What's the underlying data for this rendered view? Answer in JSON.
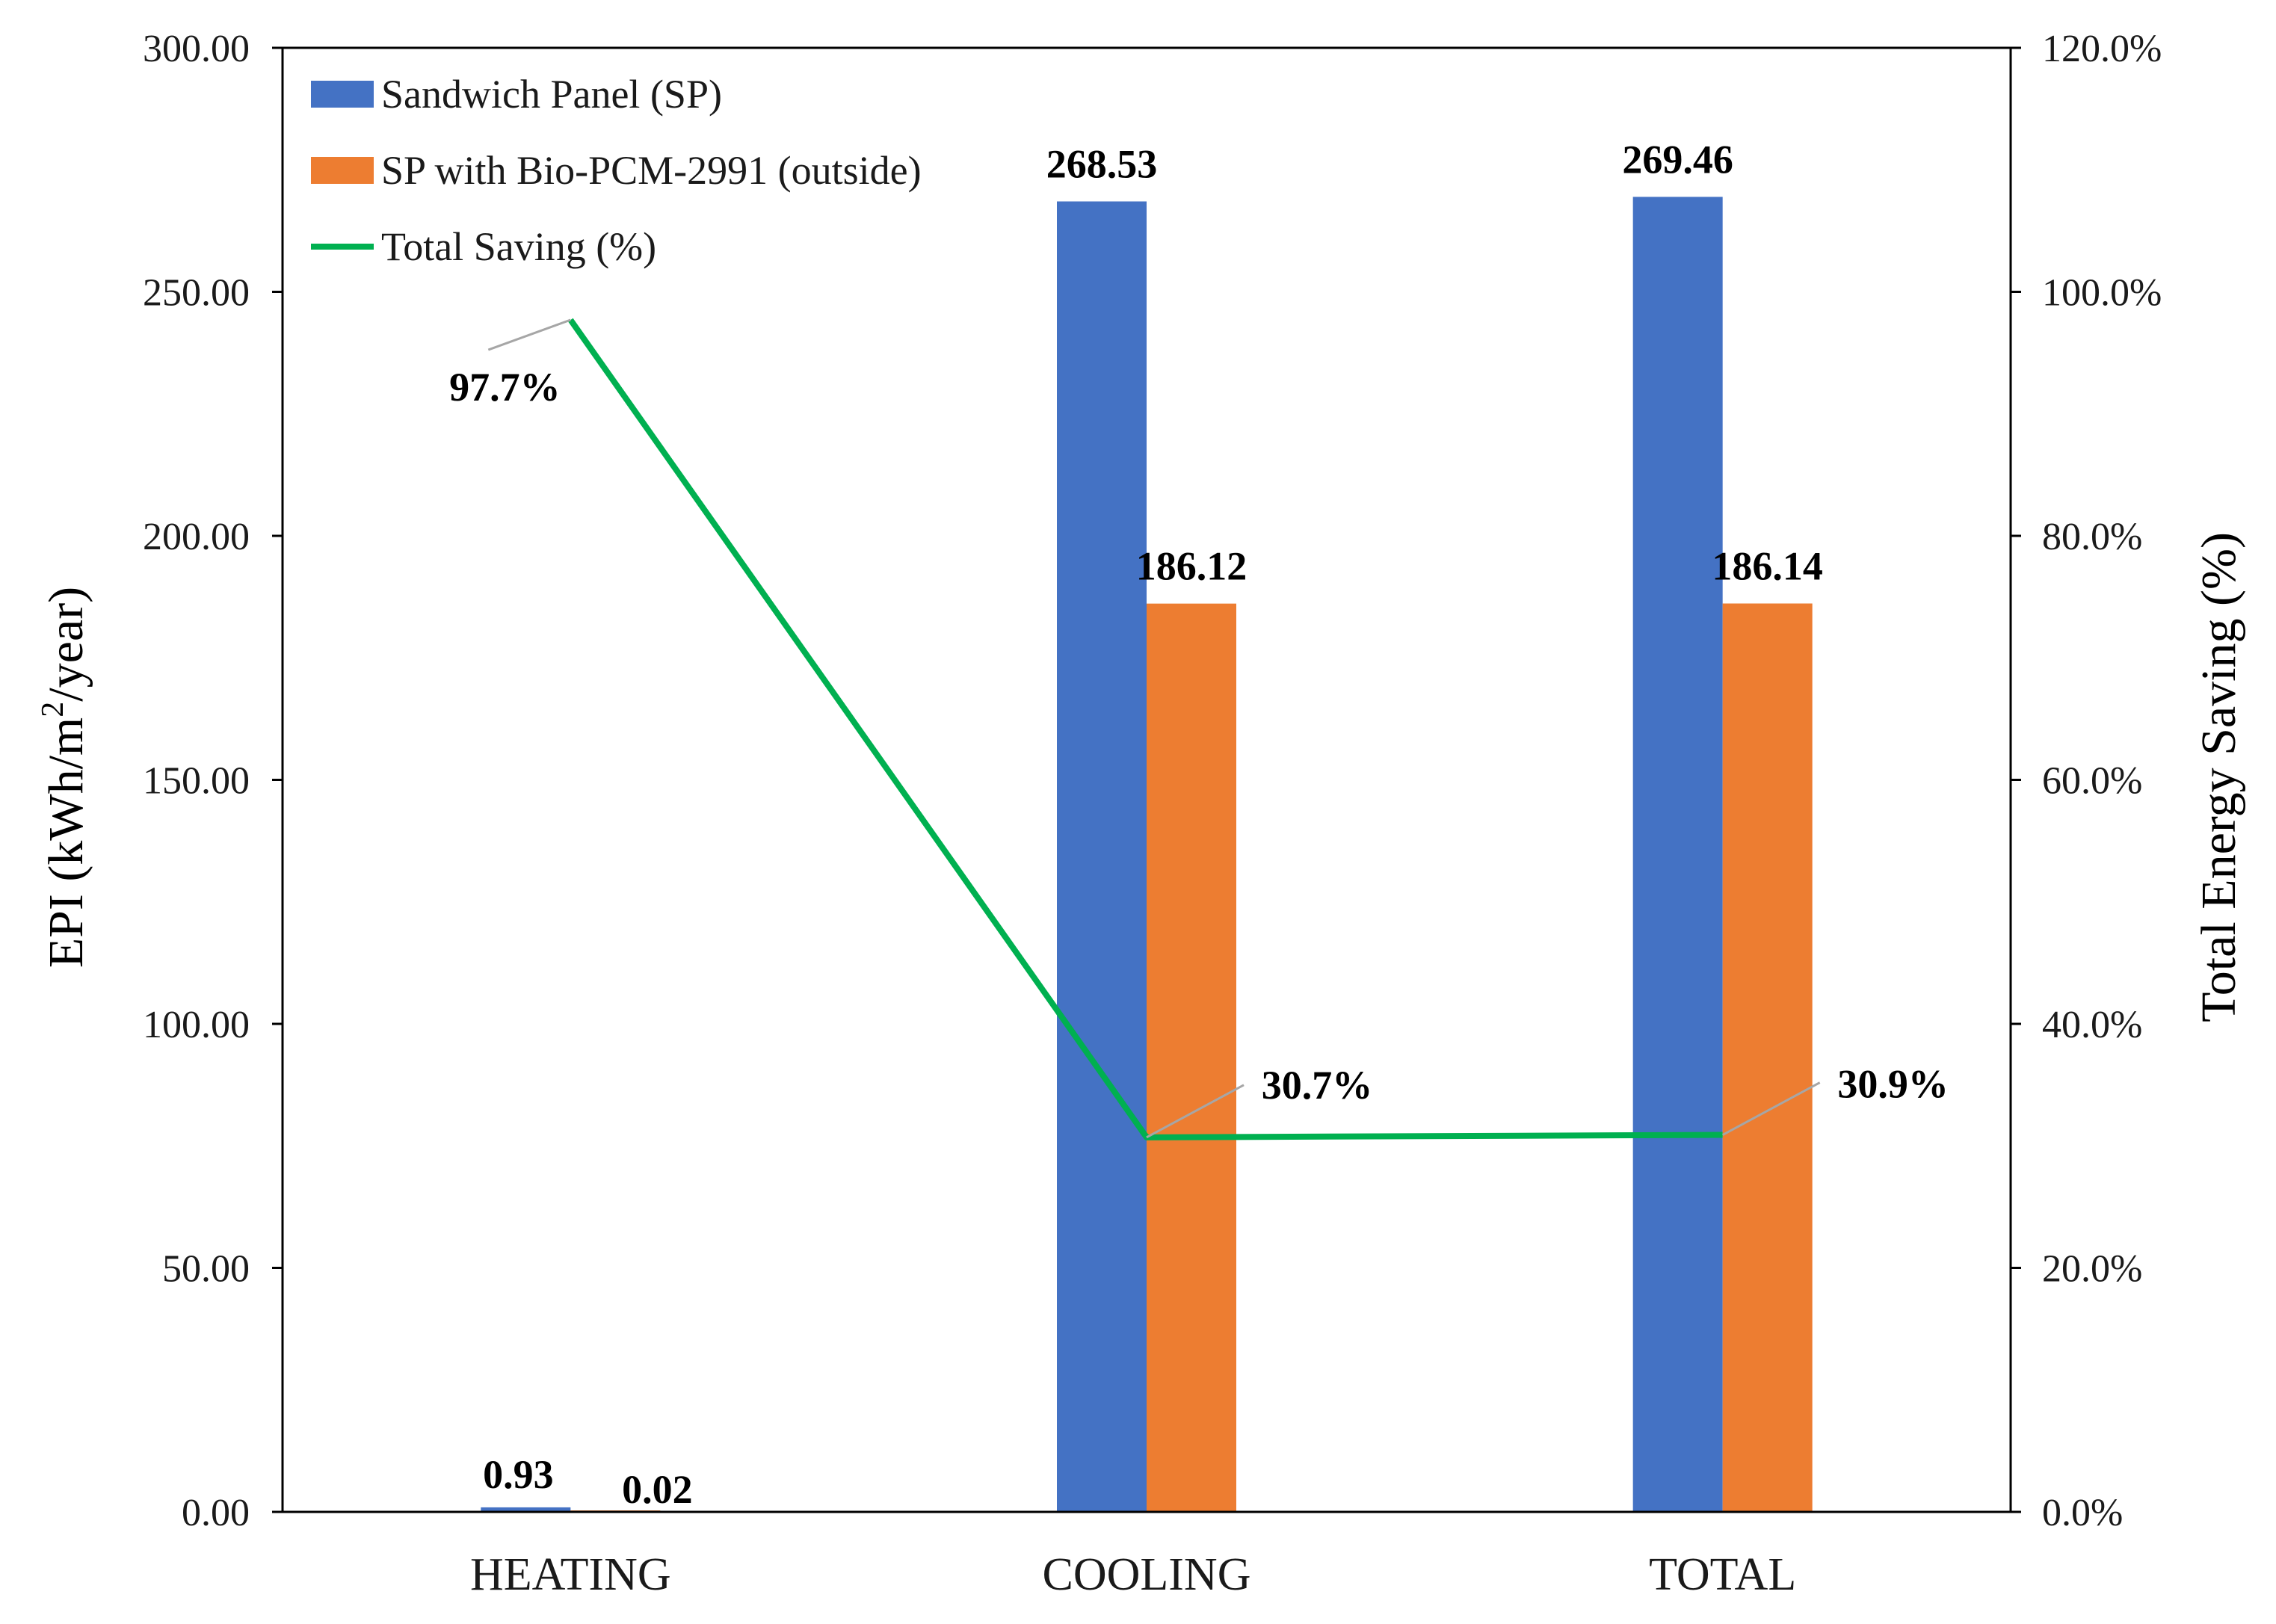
{
  "chart_data": {
    "type": "bar",
    "title": "",
    "categories": [
      "HEATING",
      "COOLING",
      "TOTAL"
    ],
    "series": [
      {
        "name": "Sandwich Panel (SP)",
        "kind": "bar",
        "axis": "left",
        "color": "#4472C4",
        "values": [
          0.93,
          268.53,
          269.46
        ],
        "labels": [
          "0.93",
          "268.53",
          "269.46"
        ]
      },
      {
        "name": "SP with Bio-PCM-2991 (outside)",
        "kind": "bar",
        "axis": "left",
        "color": "#ED7D31",
        "values": [
          0.02,
          186.12,
          186.14
        ],
        "labels": [
          "0.02",
          "186.12",
          "186.14"
        ]
      },
      {
        "name": "Total Saving (%)",
        "kind": "line",
        "axis": "right",
        "color": "#00B050",
        "values": [
          97.7,
          30.7,
          30.9
        ],
        "labels": [
          "97.7%",
          "30.7%",
          "30.9%"
        ]
      }
    ],
    "ylabel": "EPI (kWh/m²/year)",
    "ylabel_parts": [
      "EPI (kWh/m",
      "2",
      "/year)"
    ],
    "ylim": [
      0,
      300
    ],
    "yticks": [
      "0.00",
      "50.00",
      "100.00",
      "150.00",
      "200.00",
      "250.00",
      "300.00"
    ],
    "y2label": "Total Energy Saving (%)",
    "y2lim": [
      0,
      120
    ],
    "y2ticks": [
      "0.0%",
      "20.0%",
      "40.0%",
      "60.0%",
      "80.0%",
      "100.0%",
      "120.0%"
    ],
    "legend_position": "top-left",
    "grid": false
  }
}
